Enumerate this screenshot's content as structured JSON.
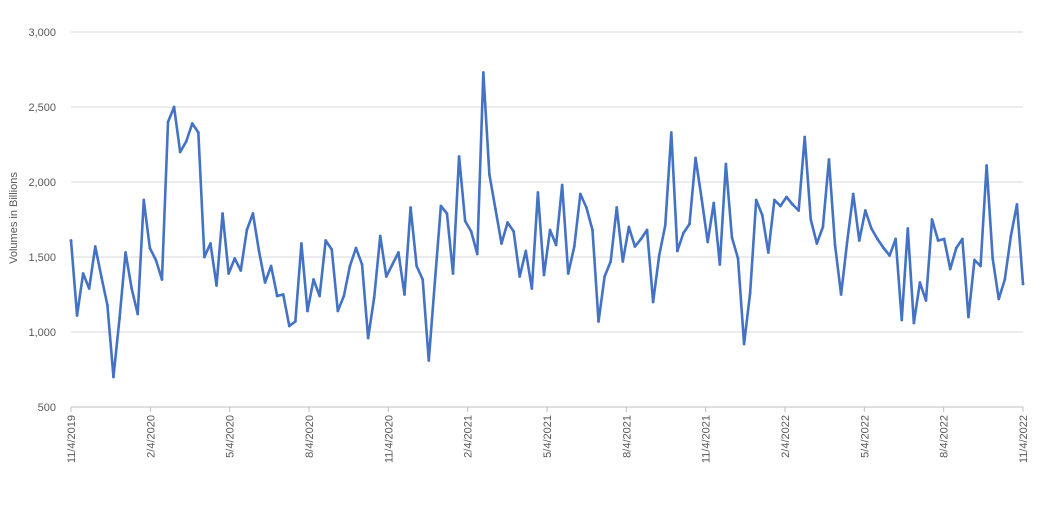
{
  "chart_data": {
    "type": "line",
    "ylabel": "Volumes in Billions",
    "ylim": [
      500,
      3000
    ],
    "yticks": [
      "500",
      "1,000",
      "1,500",
      "2,000",
      "2,500",
      "3,000"
    ],
    "ytick_values": [
      500,
      1000,
      1500,
      2000,
      2500,
      3000
    ],
    "xticks": [
      "11/4/2019",
      "2/4/2020",
      "5/4/2020",
      "8/4/2020",
      "11/4/2020",
      "2/4/2021",
      "5/4/2021",
      "8/4/2021",
      "11/4/2021",
      "2/4/2022",
      "5/4/2022",
      "8/4/2022",
      "11/4/2022"
    ],
    "x_start": "11/4/2019",
    "x_end": "11/4/2022",
    "grid": "horizontal",
    "line_color": "#4472c4",
    "series": [
      {
        "values": [
          1610,
          1110,
          1390,
          1290,
          1570,
          1370,
          1180,
          700,
          1090,
          1530,
          1290,
          1120,
          1880,
          1560,
          1480,
          1350,
          2400,
          2500,
          2200,
          2270,
          2390,
          2330,
          1500,
          1590,
          1310,
          1790,
          1390,
          1490,
          1410,
          1680,
          1790,
          1540,
          1330,
          1440,
          1240,
          1250,
          1040,
          1070,
          1590,
          1140,
          1350,
          1240,
          1610,
          1550,
          1140,
          1240,
          1440,
          1560,
          1450,
          960,
          1230,
          1640,
          1370,
          1450,
          1530,
          1250,
          1830,
          1440,
          1350,
          810,
          1330,
          1840,
          1790,
          1390,
          2170,
          1740,
          1670,
          1520,
          2730,
          2050,
          1820,
          1590,
          1730,
          1670,
          1370,
          1540,
          1290,
          1930,
          1380,
          1680,
          1580,
          1980,
          1390,
          1570,
          1920,
          1830,
          1680,
          1070,
          1370,
          1470,
          1830,
          1470,
          1700,
          1570,
          1620,
          1680,
          1200,
          1510,
          1710,
          2330,
          1540,
          1660,
          1720,
          2160,
          1890,
          1600,
          1860,
          1450,
          2120,
          1630,
          1490,
          920,
          1260,
          1880,
          1780,
          1530,
          1880,
          1840,
          1900,
          1850,
          1810,
          2300,
          1750,
          1590,
          1700,
          2150,
          1580,
          1250,
          1600,
          1920,
          1610,
          1810,
          1690,
          1620,
          1560,
          1510,
          1620,
          1080,
          1690,
          1060,
          1330,
          1210,
          1750,
          1610,
          1620,
          1420,
          1560,
          1620,
          1100,
          1480,
          1440,
          2110,
          1490,
          1220,
          1350,
          1640,
          1850,
          1320
        ]
      }
    ]
  }
}
